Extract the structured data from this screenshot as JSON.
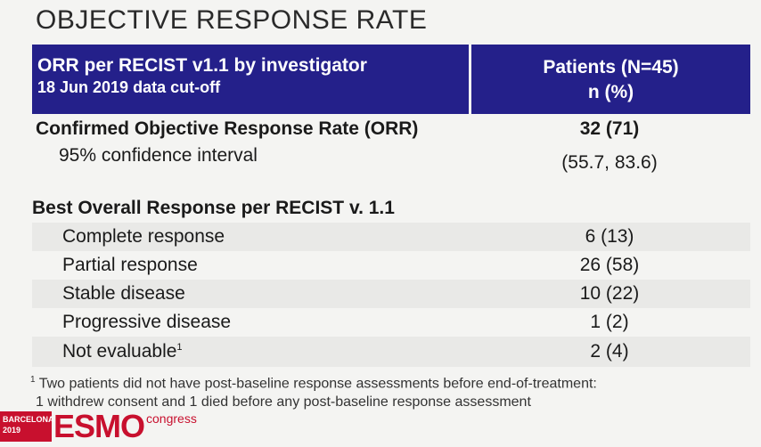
{
  "title": "OBJECTIVE RESPONSE RATE",
  "header": {
    "left_line1": "ORR per RECIST v1.1 by investigator",
    "left_line2": "18 Jun 2019 data cut-off",
    "right_line1": "Patients (N=45)",
    "right_line2": "n (%)"
  },
  "rows": [
    {
      "label": "Confirmed Objective Response Rate (ORR)",
      "value": "32 (71)"
    },
    {
      "label": "95% confidence interval",
      "value": "(55.7, 83.6)"
    },
    {
      "label": "Best Overall Response per RECIST v. 1.1",
      "value": ""
    },
    {
      "label": "Complete response",
      "value": "6 (13)"
    },
    {
      "label": "Partial response",
      "value": "26 (58)"
    },
    {
      "label": "Stable disease",
      "value": "10 (22)"
    },
    {
      "label": "Progressive disease",
      "value": "1 (2)"
    },
    {
      "label": "Not evaluable",
      "value": "2 (4)"
    }
  ],
  "not_evaluable_sup": "1",
  "footnote": {
    "marker": "1",
    "line1": "Two patients did not have post-baseline response assessments before end-of-treatment:",
    "line2": "1 withdrew consent and 1 died before any post-baseline response assessment"
  },
  "logo": {
    "city": "BARCELONA",
    "year": "2019",
    "brand": "ESMO",
    "suffix": "congress"
  },
  "colors": {
    "header_bg": "#24208a",
    "brand_red": "#c8102e"
  }
}
